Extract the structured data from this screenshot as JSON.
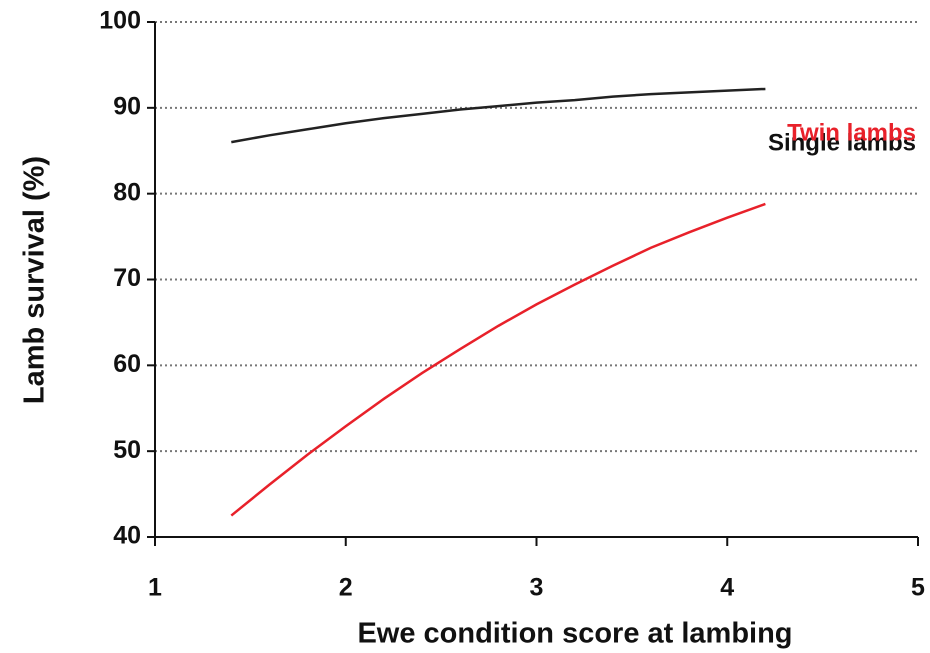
{
  "chart_data": {
    "type": "line",
    "x_label": "Ewe condition score at lambing",
    "y_label": "Lamb survival (%)",
    "x": [
      1.4,
      1.6,
      1.8,
      2.0,
      2.2,
      2.4,
      2.6,
      2.8,
      3.0,
      3.2,
      3.4,
      3.6,
      3.8,
      4.0,
      4.2
    ],
    "series": [
      {
        "name": "Single lambs",
        "color": "#222222",
        "values": [
          86.0,
          86.8,
          87.5,
          88.2,
          88.8,
          89.3,
          89.8,
          90.2,
          90.6,
          90.9,
          91.3,
          91.6,
          91.8,
          92.0,
          92.2
        ]
      },
      {
        "name": "Twin lambs",
        "color": "#e8212a",
        "values": [
          42.5,
          46.1,
          49.6,
          52.9,
          56.1,
          59.1,
          61.9,
          64.6,
          67.1,
          69.4,
          71.6,
          73.7,
          75.5,
          77.2,
          78.8
        ]
      }
    ],
    "xlim": [
      1,
      5
    ],
    "xticks": [
      1,
      2,
      3,
      4,
      5
    ],
    "ylim": [
      40,
      100
    ],
    "yticks": [
      40,
      50,
      60,
      70,
      80,
      90,
      100
    ],
    "grid": true
  }
}
